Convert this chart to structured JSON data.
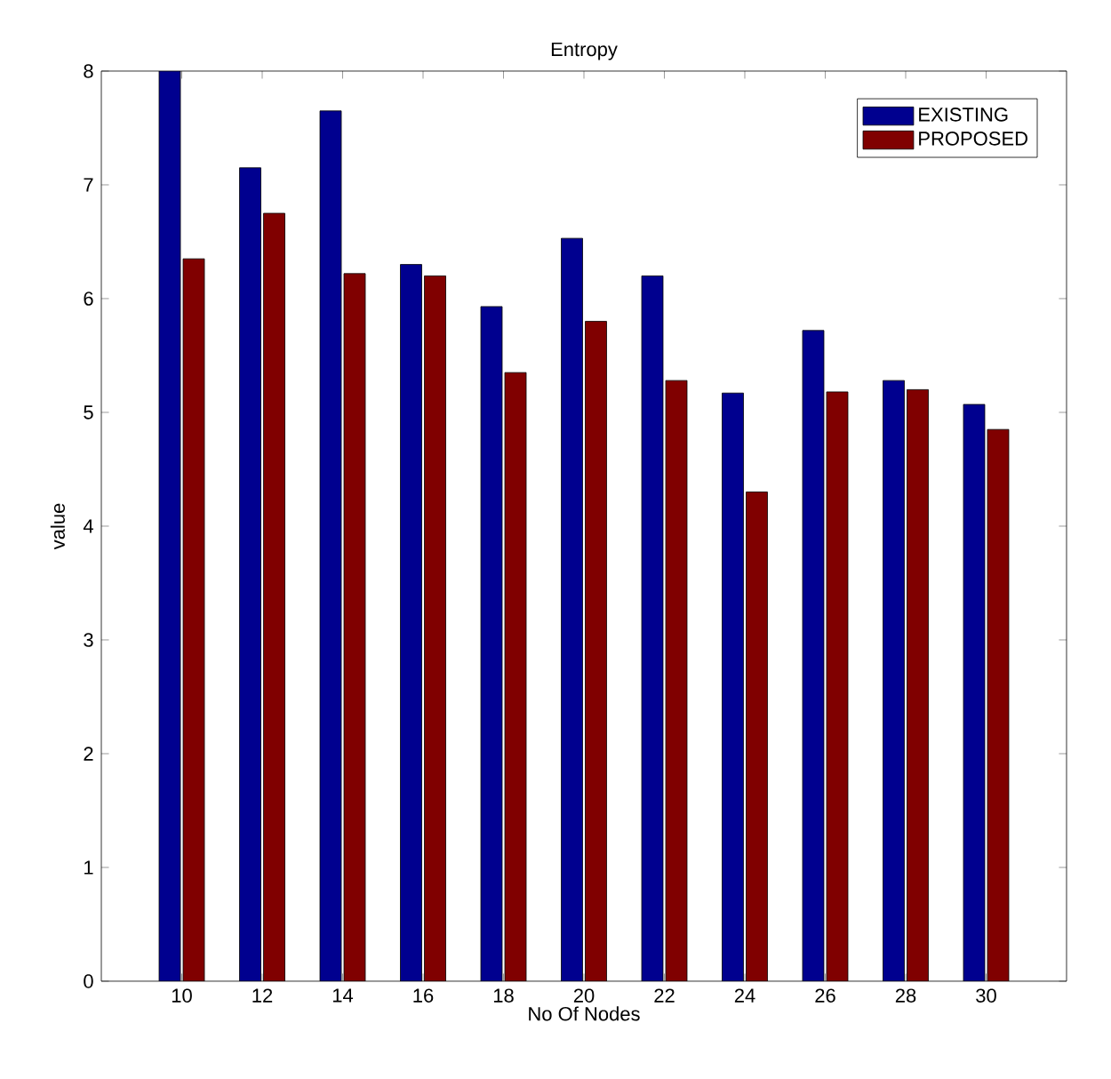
{
  "chart_data": {
    "type": "bar",
    "title": "Entropy",
    "xlabel": "No Of Nodes",
    "ylabel": "value",
    "categories": [
      "10",
      "12",
      "14",
      "16",
      "18",
      "20",
      "22",
      "24",
      "26",
      "28",
      "30"
    ],
    "series": [
      {
        "name": "EXISTING",
        "color": "#00008f",
        "values": [
          8.0,
          7.15,
          7.65,
          6.3,
          5.93,
          6.53,
          6.2,
          5.17,
          5.72,
          5.28,
          5.07
        ]
      },
      {
        "name": "PROPOSED",
        "color": "#800000",
        "values": [
          6.35,
          6.75,
          6.22,
          6.2,
          5.35,
          5.8,
          5.28,
          4.3,
          5.18,
          5.2,
          4.85
        ]
      }
    ],
    "ylim": [
      0,
      8
    ],
    "yticks": [
      0,
      1,
      2,
      3,
      4,
      5,
      6,
      7,
      8
    ],
    "legend": "top right",
    "grid": false
  }
}
